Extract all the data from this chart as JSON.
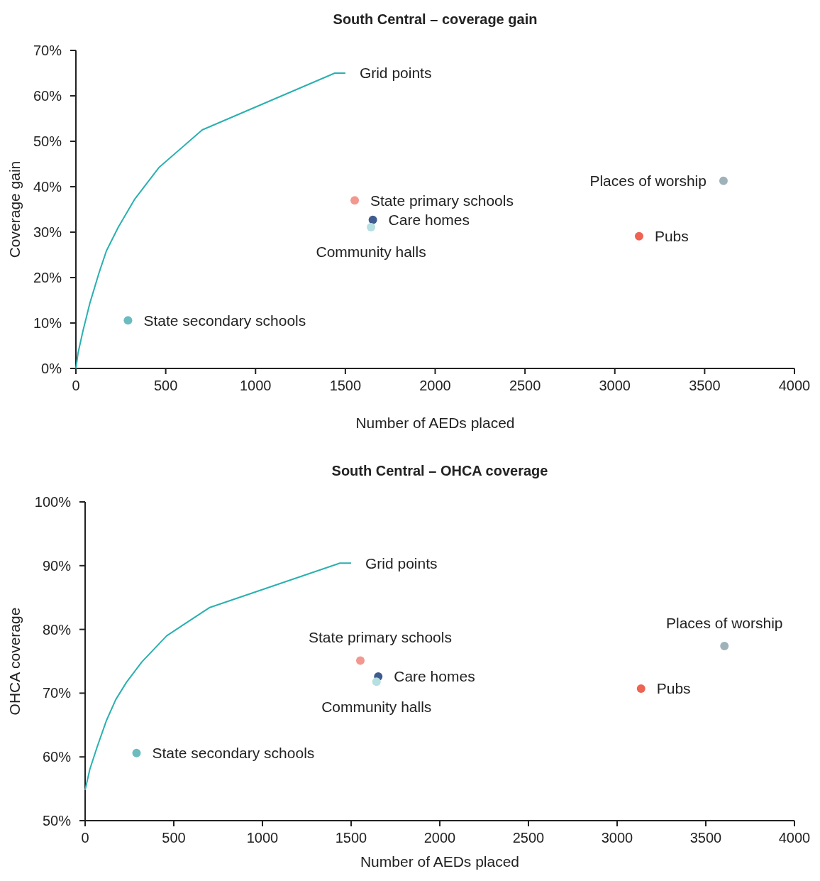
{
  "chart_data": [
    {
      "type": "scatter",
      "title": "South Central – coverage gain",
      "xlabel": "Number of AEDs placed",
      "ylabel": "Coverage gain",
      "xlim": [
        0,
        4000
      ],
      "xticks": [
        0,
        500,
        1000,
        1500,
        2000,
        2500,
        3000,
        3500,
        4000
      ],
      "ylim": [
        0,
        70
      ],
      "yticks": [
        {
          "value": 0,
          "label": "0%"
        },
        {
          "value": 10,
          "label": "10%"
        },
        {
          "value": 20,
          "label": "20%"
        },
        {
          "value": 30,
          "label": "30%"
        },
        {
          "value": 40,
          "label": "40%"
        },
        {
          "value": 50,
          "label": "50%"
        },
        {
          "value": 60,
          "label": "60%"
        },
        {
          "value": 70,
          "label": "70%"
        }
      ],
      "grid": false,
      "marker": "circle",
      "series": [
        {
          "name": "Grid points",
          "type": "line",
          "marker": "none",
          "color": "#2ab0b0",
          "x": [
            0,
            12,
            39,
            78,
            130,
            170,
            236,
            328,
            462,
            703,
            1441,
            1500
          ],
          "values": [
            0,
            3.4,
            8.2,
            14.4,
            21.2,
            25.9,
            31.1,
            37.3,
            44.2,
            52.5,
            65,
            65
          ]
        },
        {
          "name": "State secondary schools",
          "color": "#6bbcbf",
          "x": [
            290
          ],
          "values": [
            10.6
          ]
        },
        {
          "name": "State primary schools",
          "color": "#f4978e",
          "x": [
            1552
          ],
          "values": [
            37
          ]
        },
        {
          "name": "Care homes",
          "color": "#3f5b8f",
          "x": [
            1653
          ],
          "values": [
            32.7
          ]
        },
        {
          "name": "Community halls",
          "color": "#b5dfe0",
          "x": [
            1643
          ],
          "values": [
            31.1
          ]
        },
        {
          "name": "Places of worship",
          "color": "#9fb2ba",
          "x": [
            3605
          ],
          "values": [
            41.3
          ]
        },
        {
          "name": "Pubs",
          "color": "#ee6352",
          "x": [
            3135
          ],
          "values": [
            29.1
          ]
        }
      ]
    },
    {
      "type": "scatter",
      "title": "South Central – OHCA coverage",
      "xlabel": "Number of AEDs placed",
      "ylabel": "OHCA coverage",
      "xlim": [
        0,
        4000
      ],
      "xticks": [
        0,
        500,
        1000,
        1500,
        2000,
        2500,
        3000,
        3500,
        4000
      ],
      "ylim": [
        50,
        100
      ],
      "yticks": [
        {
          "value": 50,
          "label": "50%"
        },
        {
          "value": 60,
          "label": "60%"
        },
        {
          "value": 70,
          "label": "70%"
        },
        {
          "value": 80,
          "label": "80%"
        },
        {
          "value": 90,
          "label": "90%"
        },
        {
          "value": 100,
          "label": "100%"
        }
      ],
      "grid": false,
      "marker": "circle",
      "series": [
        {
          "name": "Grid points",
          "type": "line",
          "marker": "none",
          "color": "#2ab0b0",
          "x": [
            0,
            27,
            67,
            120,
            173,
            233,
            320,
            460,
            700,
            1437,
            1500
          ],
          "values": [
            54.8,
            58.1,
            61.5,
            65.7,
            69,
            71.7,
            74.9,
            79,
            83.4,
            90.4,
            90.4
          ]
        },
        {
          "name": "State secondary schools",
          "color": "#6bbcbf",
          "x": [
            290
          ],
          "values": [
            60.6
          ]
        },
        {
          "name": "State primary schools",
          "color": "#f4978e",
          "x": [
            1552
          ],
          "values": [
            75.1
          ]
        },
        {
          "name": "Care homes",
          "color": "#3f5b8f",
          "x": [
            1653
          ],
          "values": [
            72.6
          ]
        },
        {
          "name": "Community halls",
          "color": "#b5dfe0",
          "x": [
            1643
          ],
          "values": [
            71.8
          ]
        },
        {
          "name": "Places of worship",
          "color": "#9fb2ba",
          "x": [
            3605
          ],
          "values": [
            77.4
          ]
        },
        {
          "name": "Pubs",
          "color": "#ee6352",
          "x": [
            3135
          ],
          "values": [
            70.7
          ]
        }
      ]
    }
  ]
}
